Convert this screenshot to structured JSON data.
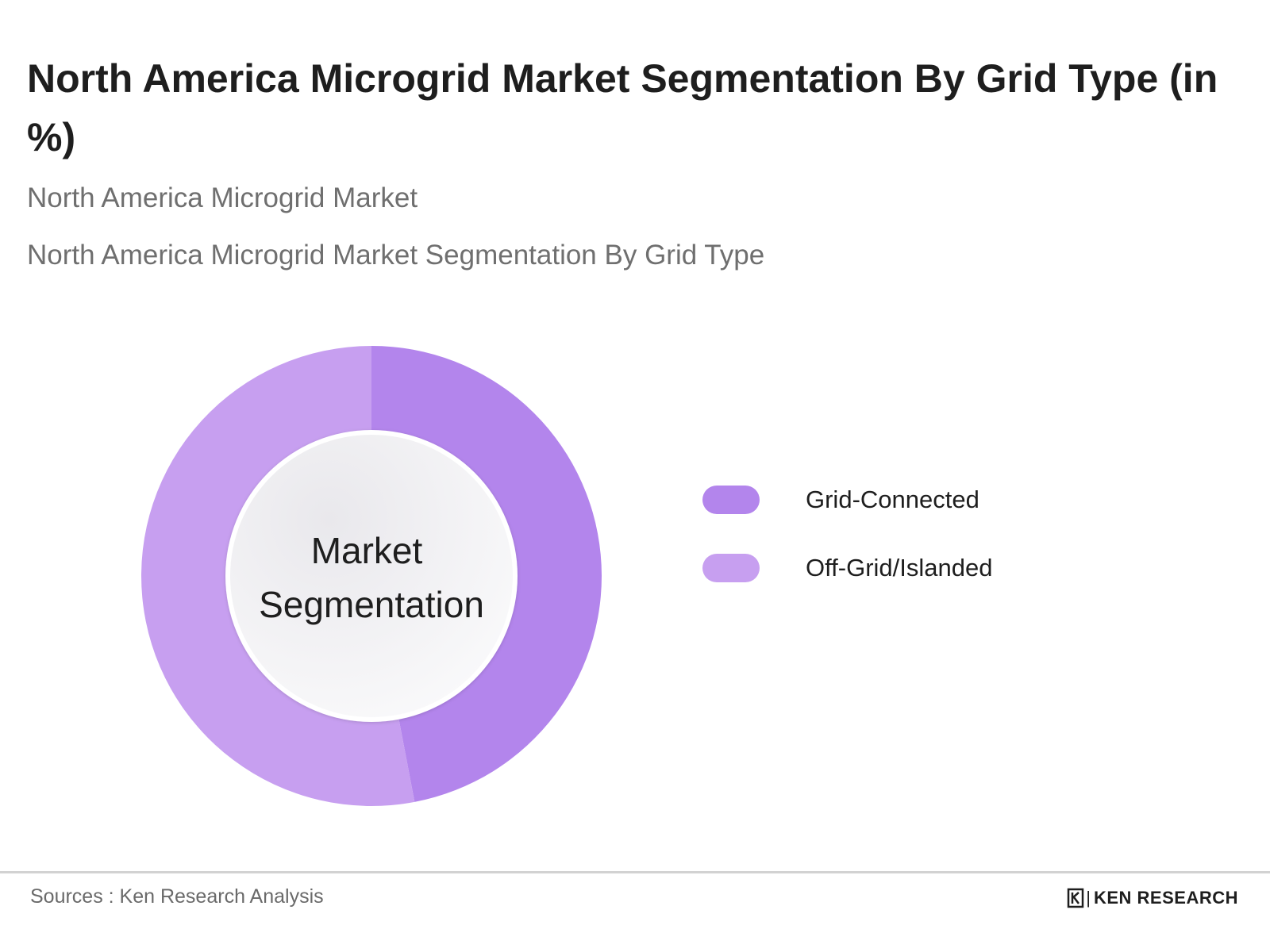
{
  "header": {
    "title": "North America Microgrid Market Segmentation By Grid Type (in %)",
    "subtitle_1": "North America Microgrid Market",
    "subtitle_2": "North America Microgrid Market Segmentation By Grid Type"
  },
  "chart_data": {
    "type": "pie",
    "variant": "donut",
    "center_label_line1": "Market",
    "center_label_line2": "Segmentation",
    "categories": [
      "Grid-Connected",
      "Off-Grid/Islanded"
    ],
    "values": [
      47,
      53
    ],
    "colors": [
      "#b385ec",
      "#c79ff0"
    ],
    "legend_position": "right"
  },
  "footer": {
    "source": "Sources : Ken Research Analysis",
    "brand": "KEN RESEARCH",
    "brand_separator": "|",
    "brand_icon": "ken-research-logo-icon"
  }
}
